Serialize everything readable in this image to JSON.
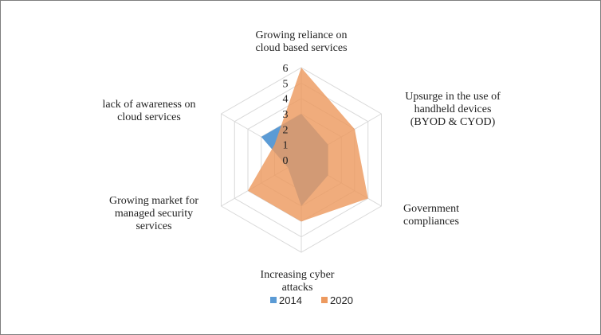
{
  "chart_data": {
    "type": "radar",
    "categories": [
      [
        "Growing reliance on",
        "cloud based services"
      ],
      [
        "Upsurge in the use of",
        "handheld devices",
        "(BYOD & CYOD)"
      ],
      [
        "Government",
        "compliances"
      ],
      [
        "Increasing cyber",
        "attacks"
      ],
      [
        "Growing market for",
        "managed security",
        "services"
      ],
      [
        "lack of awareness on",
        "cloud services"
      ]
    ],
    "series": [
      {
        "name": "2014",
        "values": [
          3,
          2,
          2,
          3,
          1,
          3
        ],
        "color": "#5b9bd5"
      },
      {
        "name": "2020",
        "values": [
          6,
          4,
          5,
          4,
          4,
          2
        ],
        "color": "#ed9a5f"
      }
    ],
    "rlim": [
      0,
      6
    ],
    "ticks": [
      "0",
      "1",
      "2",
      "3",
      "4",
      "5",
      "6"
    ],
    "legend_position": "bottom",
    "grid": true
  }
}
